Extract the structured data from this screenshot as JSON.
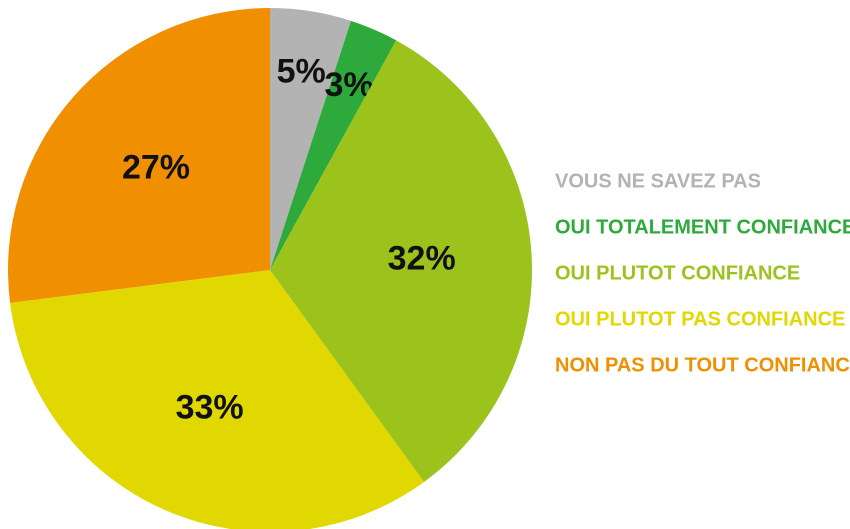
{
  "chart_data": {
    "type": "pie",
    "categories": [
      "VOUS NE SAVEZ PAS",
      "OUI TOTALEMENT CONFIANCE",
      "OUI PLUTOT CONFIANCE",
      "OUI PLUTOT PAS CONFIANCE",
      "NON PAS DU TOUT CONFIANCE"
    ],
    "values": [
      5,
      3,
      32,
      33,
      27
    ],
    "value_labels": [
      "5%",
      "3%",
      "32%",
      "33%",
      "27%"
    ],
    "colors": [
      "#b3b3b3",
      "#2eaa3c",
      "#9bc31c",
      "#e0d800",
      "#f09000"
    ]
  }
}
